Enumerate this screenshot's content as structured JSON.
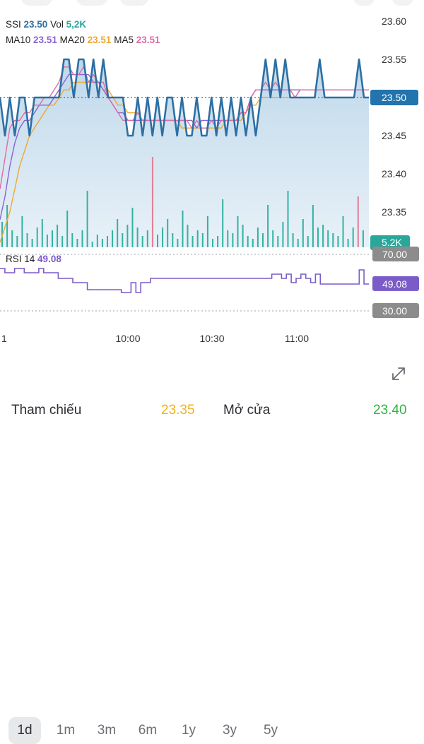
{
  "legend": {
    "symbol": "SSI",
    "price": "23.50",
    "vol_label": "Vol",
    "vol": "5,2K",
    "ma10_label": "MA10",
    "ma10": "23.51",
    "ma20_label": "MA20",
    "ma20": "23.51",
    "ma5_label": "MA5",
    "ma5": "23.51"
  },
  "rsi_legend": {
    "label": "RSI 14",
    "value": "49.08"
  },
  "price_axis": {
    "ticks": [
      "23.60",
      "23.55",
      "23.50",
      "23.45",
      "23.40",
      "23.35"
    ],
    "current_badge": "23.50"
  },
  "volume_badge": "5.2K",
  "rsi_axis": {
    "upper": "70.00",
    "current": "49.08",
    "lower": "30.00"
  },
  "time_axis": {
    "start_partial": "1",
    "labels": [
      "10:00",
      "10:30",
      "11:00"
    ]
  },
  "ranges": {
    "items": [
      "1d",
      "1m",
      "3m",
      "6m",
      "1y",
      "3y",
      "5y"
    ],
    "selected": "1d"
  },
  "info": {
    "reference_label": "Tham chiếu",
    "reference_value": "23.35",
    "open_label": "Mở cửa",
    "open_value": "23.40"
  },
  "colors": {
    "price_line": "#2d6fa3",
    "ma10": "#8a63d2",
    "ma20": "#f0a82e",
    "ma5": "#e06aa5",
    "badge_blue": "#2373ad",
    "badge_teal": "#2aa79b",
    "badge_gray": "#8c8c8c",
    "rsi_badge": "#7a5bc7",
    "up_volume": "#34b1a1",
    "down_volume": "#e17e95",
    "reference": "#f0b21a",
    "open": "#2fb344"
  },
  "chart_data": {
    "type": "line",
    "title": "",
    "y_range": [
      23.3,
      23.62
    ],
    "price": [
      23.5,
      23.45,
      23.5,
      23.45,
      23.5,
      23.5,
      23.45,
      23.5,
      23.5,
      23.5,
      23.5,
      23.5,
      23.5,
      23.55,
      23.55,
      23.5,
      23.55,
      23.55,
      23.5,
      23.55,
      23.5,
      23.55,
      23.5,
      23.5,
      23.5,
      23.5,
      23.45,
      23.45,
      23.5,
      23.45,
      23.5,
      23.45,
      23.5,
      23.45,
      23.5,
      23.5,
      23.45,
      23.5,
      23.45,
      23.45,
      23.5,
      23.45,
      23.45,
      23.5,
      23.45,
      23.5,
      23.45,
      23.5,
      23.45,
      23.5,
      23.45,
      23.5,
      23.45,
      23.5,
      23.55,
      23.5,
      23.55,
      23.5,
      23.55,
      23.5,
      23.5,
      23.5,
      23.5,
      23.5,
      23.5,
      23.55,
      23.5,
      23.5,
      23.5,
      23.5,
      23.5,
      23.5,
      23.5,
      23.55,
      23.5,
      23.5
    ],
    "ma5": [
      23.38,
      23.42,
      23.46,
      23.47,
      23.47,
      23.48,
      23.48,
      23.49,
      23.49,
      23.5,
      23.5,
      23.51,
      23.52,
      23.54,
      23.54,
      23.53,
      23.53,
      23.54,
      23.52,
      23.53,
      23.52,
      23.52,
      23.5,
      23.49,
      23.48,
      23.47,
      23.47,
      23.47,
      23.48,
      23.47,
      23.47,
      23.47,
      23.47,
      23.47,
      23.47,
      23.47,
      23.47,
      23.47,
      23.47,
      23.46,
      23.47,
      23.46,
      23.46,
      23.47,
      23.46,
      23.47,
      23.47,
      23.47,
      23.47,
      23.48,
      23.48,
      23.5,
      23.51,
      23.51,
      23.52,
      23.51,
      23.52,
      23.51,
      23.51,
      23.51,
      23.5,
      23.51,
      23.51,
      23.51,
      23.51,
      23.51,
      23.51,
      23.51,
      23.51,
      23.51,
      23.51,
      23.51,
      23.51,
      23.51,
      23.51,
      23.51
    ],
    "ma10": [
      23.34,
      23.37,
      23.41,
      23.44,
      23.46,
      23.47,
      23.47,
      23.48,
      23.49,
      23.49,
      23.49,
      23.5,
      23.51,
      23.52,
      23.53,
      23.53,
      23.53,
      23.53,
      23.53,
      23.52,
      23.52,
      23.51,
      23.5,
      23.49,
      23.48,
      23.48,
      23.47,
      23.47,
      23.47,
      23.47,
      23.47,
      23.47,
      23.47,
      23.47,
      23.47,
      23.47,
      23.47,
      23.47,
      23.47,
      23.47,
      23.46,
      23.47,
      23.47,
      23.47,
      23.47,
      23.47,
      23.47,
      23.47,
      23.47,
      23.48,
      23.48,
      23.5,
      23.51,
      23.51,
      23.51,
      23.51,
      23.51,
      23.51,
      23.51,
      23.51,
      23.51,
      23.51,
      23.51,
      23.51,
      23.51,
      23.51,
      23.51,
      23.51,
      23.51,
      23.51,
      23.51,
      23.51,
      23.51,
      23.51,
      23.51,
      23.51
    ],
    "ma20": [
      23.31,
      23.33,
      23.35,
      23.38,
      23.41,
      23.43,
      23.45,
      23.46,
      23.47,
      23.48,
      23.49,
      23.49,
      23.5,
      23.51,
      23.51,
      23.52,
      23.52,
      23.52,
      23.52,
      23.52,
      23.52,
      23.51,
      23.51,
      23.5,
      23.49,
      23.49,
      23.48,
      23.48,
      23.48,
      23.47,
      23.47,
      23.47,
      23.47,
      23.47,
      23.47,
      23.47,
      23.47,
      23.46,
      23.46,
      23.46,
      23.46,
      23.46,
      23.46,
      23.46,
      23.46,
      23.46,
      23.47,
      23.47,
      23.47,
      23.47,
      23.48,
      23.49,
      23.49,
      23.5,
      23.5,
      23.5,
      23.5,
      23.5,
      23.5,
      23.5,
      23.5,
      23.51,
      23.51,
      23.51,
      23.51,
      23.51,
      23.51,
      23.51,
      23.51,
      23.51,
      23.51,
      23.51,
      23.51,
      23.51,
      23.51,
      23.51
    ],
    "volume": [
      18,
      30,
      12,
      8,
      22,
      10,
      6,
      14,
      20,
      9,
      12,
      16,
      8,
      26,
      10,
      6,
      12,
      40,
      4,
      9,
      6,
      8,
      12,
      20,
      10,
      16,
      28,
      14,
      8,
      12,
      64,
      9,
      14,
      20,
      10,
      6,
      26,
      16,
      8,
      12,
      10,
      22,
      6,
      8,
      34,
      12,
      10,
      22,
      16,
      8,
      6,
      14,
      10,
      30,
      12,
      8,
      18,
      40,
      10,
      6,
      20,
      8,
      30,
      14,
      16,
      12,
      10,
      8,
      22,
      6,
      14,
      36,
      12
    ],
    "volume_down": [
      false,
      false,
      false,
      false,
      false,
      false,
      false,
      false,
      false,
      false,
      false,
      false,
      false,
      false,
      false,
      false,
      false,
      false,
      false,
      false,
      false,
      false,
      false,
      false,
      false,
      false,
      false,
      false,
      false,
      false,
      true,
      false,
      false,
      false,
      false,
      false,
      false,
      false,
      false,
      false,
      false,
      false,
      false,
      false,
      false,
      false,
      false,
      false,
      false,
      false,
      false,
      false,
      false,
      false,
      false,
      false,
      false,
      false,
      false,
      false,
      false,
      false,
      false,
      false,
      false,
      false,
      false,
      false,
      false,
      false,
      false,
      true,
      false
    ],
    "rsi": [
      60,
      57,
      57,
      60,
      60,
      57,
      57,
      57,
      60,
      57,
      57,
      57,
      53,
      53,
      53,
      50,
      50,
      50,
      45,
      45,
      45,
      45,
      45,
      45,
      45,
      43,
      43,
      50,
      43,
      50,
      50,
      53,
      53,
      53,
      53,
      53,
      53,
      53,
      53,
      53,
      53,
      53,
      53,
      53,
      53,
      53,
      53,
      53,
      53,
      53,
      53,
      53,
      53,
      53,
      53,
      53,
      56,
      56,
      53,
      56,
      50,
      53,
      56,
      53,
      50,
      56,
      49,
      49,
      49,
      49,
      49,
      49,
      49,
      49,
      59,
      49,
      49
    ],
    "rsi_range": [
      20,
      80
    ]
  }
}
